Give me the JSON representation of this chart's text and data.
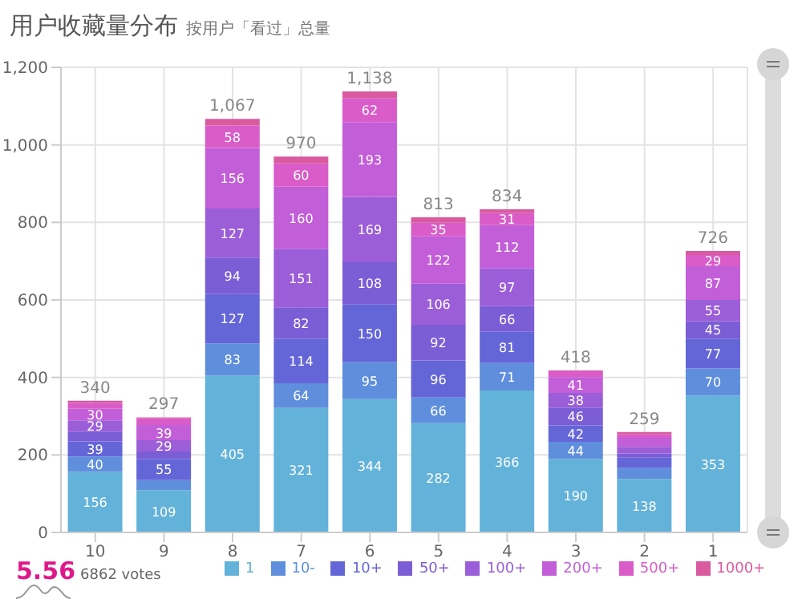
{
  "chart_data": {
    "type": "bar",
    "title": "用户收藏量分布",
    "subtitle": "按用户「看过」总量",
    "categories": [
      "10",
      "9",
      "8",
      "7",
      "6",
      "5",
      "4",
      "3",
      "2",
      "1"
    ],
    "stacked": true,
    "grid": true,
    "legend": "bottom",
    "ylim": [
      0,
      1200
    ],
    "yticks": [
      0,
      200,
      400,
      600,
      800,
      {
        "value": 1000,
        "label": "1,000"
      },
      {
        "value": 1200,
        "label": "1,200"
      }
    ],
    "totals": [
      "340",
      "297",
      "1,067",
      "970",
      "1,138",
      "813",
      "834",
      "418",
      "259",
      "726"
    ],
    "annotations": [
      "5.56",
      "6862 votes"
    ],
    "series": [
      {
        "name": "1",
        "color": "#63b2d9",
        "values": [
          156,
          109,
          405,
          321,
          344,
          282,
          366,
          190,
          138,
          353
        ],
        "value_labels": [
          "156",
          "109",
          "405",
          "321",
          "344",
          "282",
          "366",
          "190",
          "138",
          "353"
        ]
      },
      {
        "name": "10-",
        "color": "#5f8fdc",
        "values": [
          40,
          26,
          83,
          64,
          95,
          66,
          71,
          44,
          28,
          70
        ],
        "value_labels": [
          "40",
          null,
          "83",
          "64",
          "95",
          "66",
          "71",
          "44",
          null,
          "70"
        ]
      },
      {
        "name": "10+",
        "color": "#6466d8",
        "values": [
          39,
          55,
          127,
          114,
          150,
          96,
          81,
          42,
          27,
          77
        ],
        "value_labels": [
          "39",
          "55",
          "127",
          "114",
          "150",
          "96",
          "81",
          "42",
          null,
          "77"
        ]
      },
      {
        "name": "50+",
        "color": "#7b5dd6",
        "values": [
          25,
          19,
          94,
          82,
          108,
          92,
          66,
          46,
          11,
          45
        ],
        "value_labels": [
          null,
          null,
          "94",
          "82",
          "108",
          "92",
          "66",
          "46",
          null,
          "45"
        ]
      },
      {
        "name": "100+",
        "color": "#9b5ed8",
        "values": [
          29,
          29,
          127,
          151,
          169,
          106,
          97,
          38,
          17,
          55
        ],
        "value_labels": [
          "29",
          "29",
          "127",
          "151",
          "169",
          "106",
          "97",
          "38",
          null,
          "55"
        ]
      },
      {
        "name": "200+",
        "color": "#c25ed8",
        "values": [
          30,
          39,
          156,
          160,
          193,
          122,
          112,
          41,
          23,
          87
        ],
        "value_labels": [
          "30",
          "39",
          "156",
          "160",
          "193",
          "122",
          "112",
          "41",
          null,
          "87"
        ]
      },
      {
        "name": "500+",
        "color": "#d95cc9",
        "values": [
          15,
          18,
          58,
          60,
          62,
          35,
          31,
          15,
          9,
          29
        ],
        "value_labels": [
          null,
          null,
          "58",
          "60",
          "62",
          "35",
          "31",
          null,
          null,
          "29"
        ]
      },
      {
        "name": "1000+",
        "color": "#d95a9f",
        "values": [
          6,
          2,
          17,
          18,
          17,
          14,
          10,
          2,
          6,
          10
        ],
        "value_labels": [
          null,
          null,
          null,
          null,
          null,
          null,
          null,
          null,
          null,
          null
        ]
      }
    ]
  }
}
